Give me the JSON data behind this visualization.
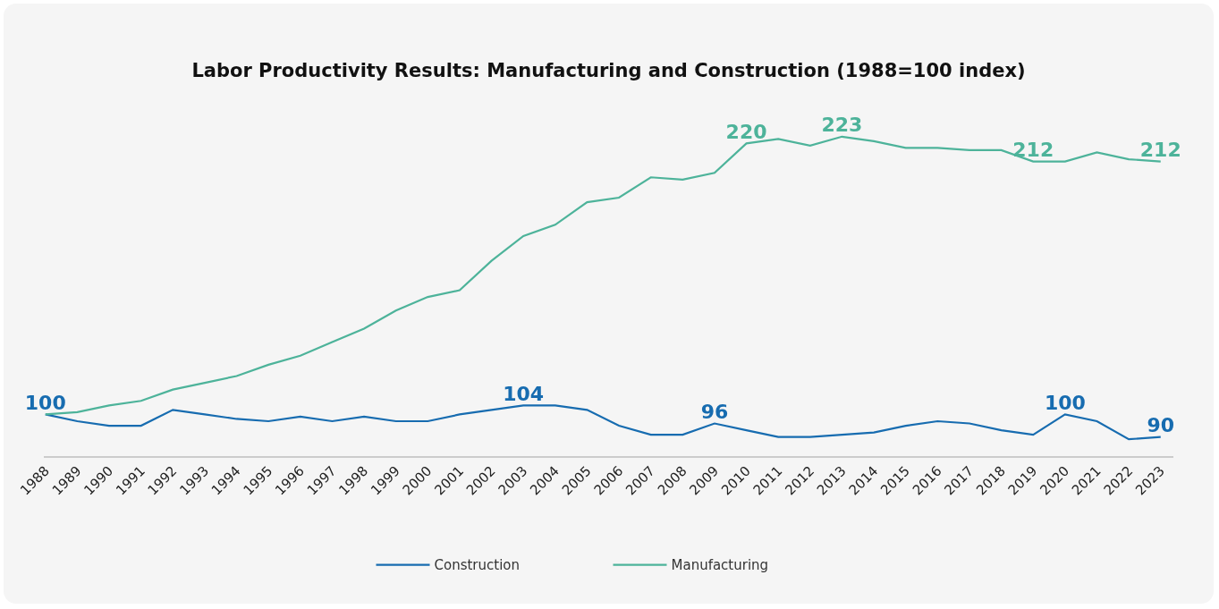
{
  "chart_data": {
    "type": "line",
    "title": "Labor Productivity Results: Manufacturing and Construction (1988=100 index)",
    "categories": [
      "1988",
      "1989",
      "1990",
      "1991",
      "1992",
      "1993",
      "1994",
      "1995",
      "1996",
      "1997",
      "1998",
      "1999",
      "2000",
      "2001",
      "2002",
      "2003",
      "2004",
      "2005",
      "2006",
      "2007",
      "2008",
      "2009",
      "2010",
      "2011",
      "2012",
      "2013",
      "2014",
      "2015",
      "2016",
      "2017",
      "2018",
      "2019",
      "2020",
      "2021",
      "2022",
      "2023"
    ],
    "series": [
      {
        "name": "Construction",
        "color": "#176cb0",
        "values": [
          100,
          97,
          95,
          95,
          102,
          100,
          98,
          97,
          99,
          97,
          99,
          97,
          97,
          100,
          102,
          104,
          104,
          102,
          95,
          91,
          91,
          96,
          93,
          90,
          90,
          91,
          92,
          95,
          97,
          96,
          93,
          91,
          100,
          97,
          89,
          90
        ],
        "value_labels": [
          "100",
          null,
          null,
          null,
          null,
          null,
          null,
          null,
          null,
          null,
          null,
          null,
          null,
          null,
          null,
          "104",
          null,
          null,
          null,
          null,
          null,
          "96",
          null,
          null,
          null,
          null,
          null,
          null,
          null,
          null,
          null,
          null,
          "100",
          null,
          null,
          "90"
        ]
      },
      {
        "name": "Manufacturing",
        "color": "#4db39a",
        "values": [
          100,
          101,
          104,
          106,
          111,
          114,
          117,
          122,
          126,
          132,
          138,
          146,
          152,
          155,
          168,
          179,
          184,
          194,
          196,
          205,
          204,
          207,
          220,
          222,
          219,
          223,
          221,
          218,
          218,
          217,
          217,
          212,
          212,
          216,
          213,
          212
        ],
        "value_labels": [
          null,
          null,
          null,
          null,
          null,
          null,
          null,
          null,
          null,
          null,
          null,
          null,
          null,
          null,
          null,
          null,
          null,
          null,
          null,
          null,
          null,
          null,
          "220",
          null,
          null,
          "223",
          null,
          null,
          null,
          null,
          null,
          "212",
          null,
          null,
          null,
          "212"
        ]
      }
    ],
    "tick_labels": "x",
    "grid": false,
    "legend": "bottom",
    "marker": "none",
    "line_style": "solid"
  }
}
